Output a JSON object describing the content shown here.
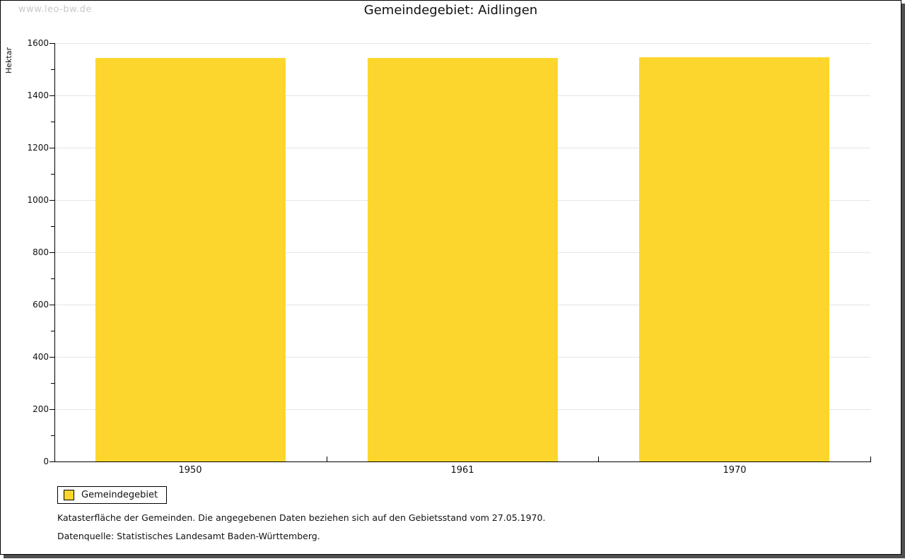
{
  "watermark": "www.leo-bw.de",
  "header": {
    "title": "Gemeindegebiet: Aidlingen"
  },
  "chart_data": {
    "type": "bar",
    "title": "Gemeindegebiet: Aidlingen",
    "categories": [
      "1950",
      "1961",
      "1970"
    ],
    "series": [
      {
        "name": "Gemeindegebiet",
        "values": [
          1543,
          1543,
          1546
        ]
      }
    ],
    "xlabel": "",
    "ylabel": "Hektar",
    "ylim": [
      0,
      1600
    ],
    "ytick_step": 200,
    "yticks": [
      0,
      200,
      400,
      600,
      800,
      1000,
      1200,
      1400,
      1600
    ],
    "minor_ytick_step": 100,
    "grid": true,
    "legend_position": "bottom-left",
    "bar_color": "#FCD62C",
    "gridline_color": "#e5e5e5",
    "axis_color": "#000000"
  },
  "legend": {
    "items": [
      {
        "label": "Gemeindegebiet",
        "color": "#FCD62C"
      }
    ]
  },
  "footnotes": [
    "Katasterfläche der Gemeinden. Die angegebenen Daten beziehen sich auf den Gebietsstand vom 27.05.1970.",
    "Datenquelle: Statistisches Landesamt Baden-Württemberg."
  ],
  "colors": {
    "frame_border": "#000000",
    "frame_shadow": "#4f4f4f",
    "watermark": "#c9c9c9",
    "background": "#ffffff"
  }
}
